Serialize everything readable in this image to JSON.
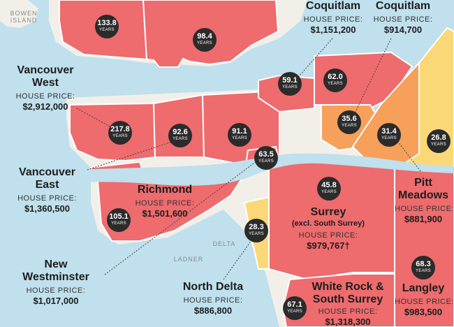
{
  "colors": {
    "water": "#bfe0ec",
    "land": "#f2efe9",
    "red": "#ee6b6e",
    "orange": "#f6a05a",
    "yellow": "#fbd877",
    "badge": "#2b2b2b",
    "border": "#ffffff"
  },
  "areas": {
    "bowen": "BOWEN ISLAND",
    "delta": "DELTA",
    "ladner": "LADNER"
  },
  "regions": {
    "vancouver_west": {
      "name": "Vancouver West",
      "label": "HOUSE PRICE:",
      "price": "$2,912,000"
    },
    "vancouver_east": {
      "name": "Vancouver East",
      "label": "HOUSE PRICE:",
      "price": "$1,360,500"
    },
    "richmond": {
      "name": "Richmond",
      "label": "HOUSE PRICE:",
      "price": "$1,501,600"
    },
    "new_westminster": {
      "name": "New Westminster",
      "label": "HOUSE PRICE:",
      "price": "$1,017,000"
    },
    "north_delta": {
      "name": "North Delta",
      "label": "HOUSE PRICE:",
      "price": "$886,800"
    },
    "surrey": {
      "name": "Surrey",
      "sub": "(excl. South Surrey)",
      "label": "HOUSE PRICE:",
      "price": "$979,767†"
    },
    "white_rock": {
      "name": "White Rock & South Surrey",
      "label": "HOUSE PRICE:",
      "price": "$1,318,300"
    },
    "pitt_meadows": {
      "name": "Pitt Meadows",
      "label": "HOUSE PRICE:",
      "price": "$881,900"
    },
    "langley": {
      "name": "Langley",
      "label": "HOUSE PRICE:",
      "price": "$983,500"
    },
    "coquitlam": {
      "name": "Coquitlam",
      "label": "HOUSE PRICE:",
      "price": "$1,151,200"
    },
    "port_coquitlam": {
      "name": "Coquitlam",
      "label": "HOUSE PRICE:",
      "price": "$914,700"
    }
  },
  "badges": [
    {
      "id": "west-vancouver",
      "value": "133.8",
      "unit": "YEARS"
    },
    {
      "id": "north-vancouver",
      "value": "98.4",
      "unit": "YEARS"
    },
    {
      "id": "vancouver-west",
      "value": "217.8",
      "unit": "YEARS"
    },
    {
      "id": "vancouver-mid",
      "value": "92.6",
      "unit": "YEARS"
    },
    {
      "id": "burnaby",
      "value": "91.1",
      "unit": "YEARS"
    },
    {
      "id": "port-moody",
      "value": "59.1",
      "unit": "YEARS"
    },
    {
      "id": "coquitlam",
      "value": "62.0",
      "unit": "YEARS"
    },
    {
      "id": "port-coquitlam",
      "value": "35.6",
      "unit": "YEARS"
    },
    {
      "id": "pitt-meadows",
      "value": "31.4",
      "unit": "YEARS"
    },
    {
      "id": "maple-ridge",
      "value": "26.8",
      "unit": "YEARS"
    },
    {
      "id": "new-westminster",
      "value": "63.5",
      "unit": "YEARS"
    },
    {
      "id": "surrey",
      "value": "45.8",
      "unit": "YEARS"
    },
    {
      "id": "richmond",
      "value": "105.1",
      "unit": "YEARS"
    },
    {
      "id": "north-delta",
      "value": "28.3",
      "unit": "YEARS"
    },
    {
      "id": "white-rock",
      "value": "67.1",
      "unit": "YEARS"
    },
    {
      "id": "langley",
      "value": "68.3",
      "unit": "YEARS"
    }
  ]
}
